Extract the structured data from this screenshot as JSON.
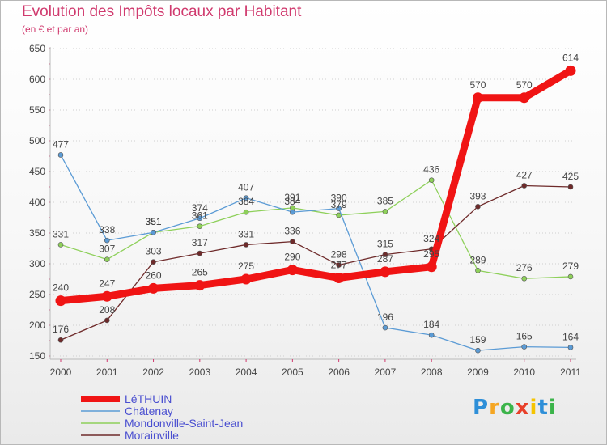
{
  "chart_data": {
    "type": "line",
    "title": "Evolution des Impôts locaux par Habitant",
    "subtitle": "(en € et par an)",
    "xlabel": "",
    "ylabel": "",
    "ylim": [
      150,
      650
    ],
    "yticks": [
      150,
      200,
      250,
      300,
      350,
      400,
      450,
      500,
      550,
      600,
      650
    ],
    "categories": [
      "2000",
      "2001",
      "2002",
      "2003",
      "2004",
      "2005",
      "2006",
      "2007",
      "2008",
      "2009",
      "2010",
      "2011"
    ],
    "grid": "horizontal dotted",
    "series": [
      {
        "name": "Mondonville-Saint-Jean",
        "color": "#8ed05a",
        "values": [
          331,
          307,
          351,
          361,
          384,
          391,
          379,
          385,
          436,
          289,
          276,
          279
        ],
        "labels": [
          "331",
          "307",
          "351",
          "361",
          "384",
          "391",
          "379",
          "385",
          "436",
          "289",
          "276",
          "279"
        ]
      },
      {
        "name": "Morainville",
        "color": "#6e2a2a",
        "values": [
          176,
          208,
          303,
          317,
          331,
          336,
          298,
          315,
          324,
          393,
          427,
          425
        ],
        "labels": [
          "176",
          "208",
          "303",
          "317",
          "331",
          "336",
          "298",
          "315",
          "324",
          "393",
          "427",
          "425"
        ]
      },
      {
        "name": "Châtenay",
        "color": "#5b9bd5",
        "values": [
          477,
          338,
          351,
          374,
          407,
          384,
          390,
          196,
          184,
          159,
          165,
          164
        ],
        "labels": [
          "477",
          "338",
          "351",
          "374",
          "407",
          "384",
          "390",
          "196",
          "184",
          "159",
          "165",
          "164"
        ]
      },
      {
        "name": "LéTHUIN",
        "color": "#f01414",
        "values": [
          240,
          247,
          260,
          265,
          275,
          290,
          277,
          287,
          295,
          570,
          570,
          614
        ],
        "labels": [
          "240",
          "247",
          "260",
          "265",
          "275",
          "290",
          "277",
          "287",
          "295",
          "570",
          "570",
          "614"
        ]
      }
    ]
  },
  "logo": {
    "text": "Proxiti",
    "letters": [
      "P",
      "r",
      "o",
      "x",
      "i",
      "t",
      "i"
    ]
  }
}
